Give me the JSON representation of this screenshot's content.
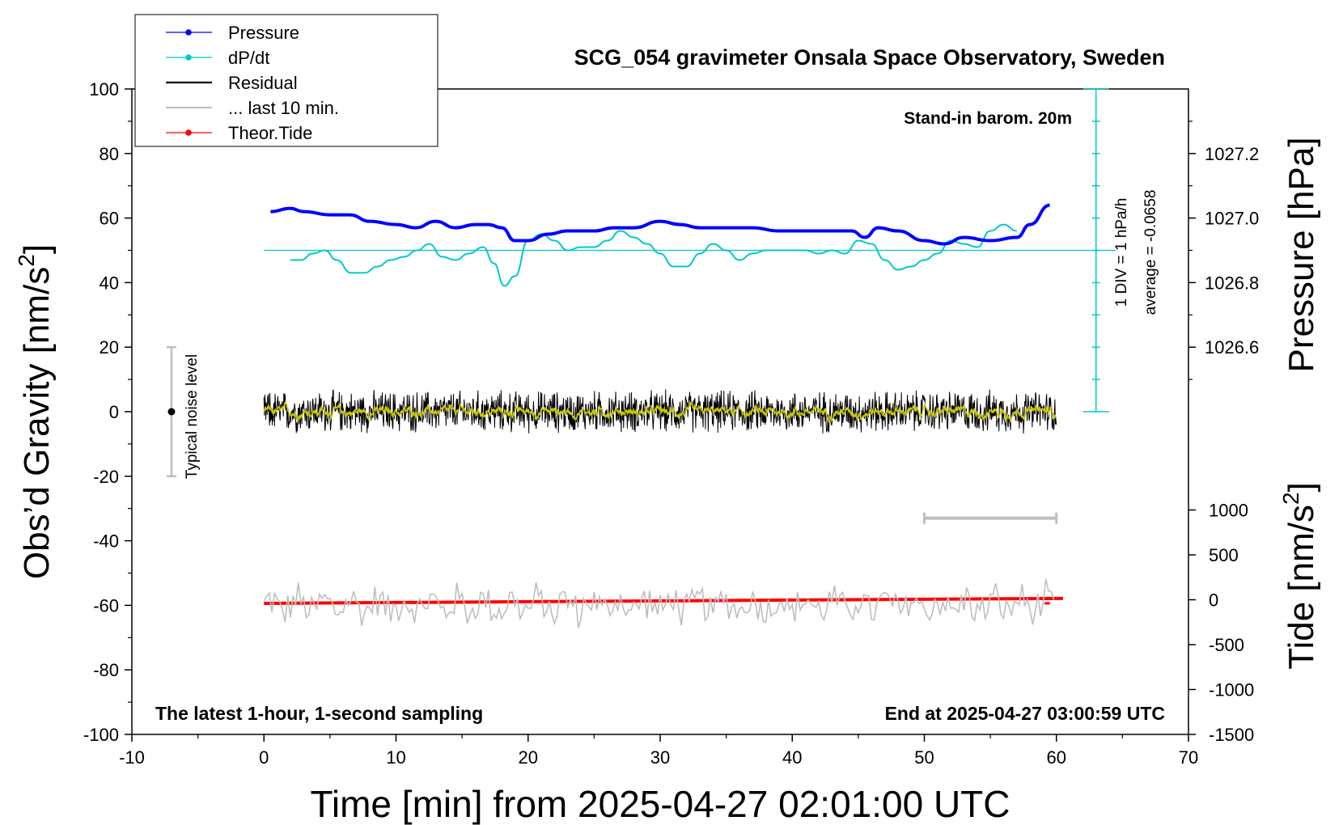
{
  "chart_data": {
    "type": "line",
    "title": "SCG_054 gravimeter Onsala Space Observatory, Sweden",
    "subtitle_top_right": "Stand-in barom. 20m",
    "footer_left": "The latest 1-hour, 1-second sampling",
    "footer_right": "End at 2025-04-27 03:00:59 UTC",
    "xlabel": "Time [min] from 2025-04-27 02:01:00 UTC",
    "ylabel_left_main": "Obs’d Gravity [nm/s",
    "ylabel_left_sup": "2",
    "ylabel_left_end": "]",
    "ylabel_right_pressure": "Pressure [hPa]",
    "ylabel_right_tide_main": "Tide [nm/s",
    "ylabel_right_tide_sup": "2",
    "ylabel_right_tide_end": "]",
    "xlim": [
      -10,
      70
    ],
    "ylim": [
      -100,
      100
    ],
    "pressure_lim": [
      1026.4,
      1027.4
    ],
    "tide_lim": [
      -1500,
      1500
    ],
    "x_ticks": [
      "-10",
      "0",
      "10",
      "20",
      "30",
      "40",
      "50",
      "60",
      "70"
    ],
    "x_tick_values": [
      -10,
      0,
      10,
      20,
      30,
      40,
      50,
      60,
      70
    ],
    "y_ticks": [
      "100",
      "80",
      "60",
      "40",
      "20",
      "0",
      "-20",
      "-40",
      "-60",
      "-80",
      "-100"
    ],
    "y_tick_values": [
      100,
      80,
      60,
      40,
      20,
      0,
      -20,
      -40,
      -60,
      -80,
      -100
    ],
    "pressure_ticks": [
      "1027.2",
      "1027.0",
      "1026.8",
      "1026.6"
    ],
    "pressure_tick_values": [
      1027.2,
      1027.0,
      1026.8,
      1026.6
    ],
    "tide_ticks": [
      "1000",
      "500",
      "0",
      "-500",
      "-1000",
      "-1500"
    ],
    "tide_tick_values": [
      1000,
      500,
      0,
      -500,
      -1000,
      -1500
    ],
    "legend_placement": "top-left",
    "legend": [
      {
        "label": "Pressure",
        "color": "#0000ff",
        "marker": true
      },
      {
        "label": "dP/dt",
        "color": "#00c8c8",
        "marker": true
      },
      {
        "label": "Residual",
        "color": "#000000",
        "marker": false
      },
      {
        "label": "... last 10 min.",
        "color": "#bebebe",
        "marker": false
      },
      {
        "label": "Theor.Tide",
        "color": "#ff0000",
        "marker": true
      }
    ],
    "dpdt_scale": {
      "label_div": "1 DIV = 1 hPa/h",
      "label_avg": "average = -0.0658"
    },
    "noise_bar": {
      "label": "Typical noise level",
      "x": -7,
      "y_range": [
        -20,
        20
      ]
    },
    "ten_min_bar": {
      "x_range": [
        50,
        60
      ],
      "y": -33
    },
    "series": [
      {
        "name": "Pressure",
        "color": "#0000ff",
        "axis": "pressure",
        "x": [
          0.5,
          2,
          3,
          5,
          6.5,
          8,
          10,
          11.5,
          13,
          14.5,
          16,
          17,
          18,
          19,
          20,
          21.5,
          23,
          25,
          26.5,
          28,
          30,
          31.5,
          33,
          35,
          37,
          39,
          41,
          43,
          44.5,
          45.5,
          46.5,
          48,
          50,
          51.5,
          53,
          55,
          57,
          58,
          59.5
        ],
        "values": [
          1027.02,
          1027.03,
          1027.02,
          1027.01,
          1027.01,
          1026.99,
          1026.98,
          1026.97,
          1026.99,
          1026.97,
          1026.98,
          1026.98,
          1026.97,
          1026.93,
          1026.93,
          1026.95,
          1026.96,
          1026.96,
          1026.97,
          1026.97,
          1026.99,
          1026.98,
          1026.97,
          1026.97,
          1026.97,
          1026.96,
          1026.96,
          1026.96,
          1026.96,
          1026.94,
          1026.97,
          1026.96,
          1026.93,
          1026.92,
          1026.94,
          1026.93,
          1026.94,
          1026.98,
          1027.04
        ]
      },
      {
        "name": "dP/dt",
        "color": "#00c8c8",
        "axis": "left",
        "x": [
          2,
          2.8,
          3.7,
          4.6,
          5.5,
          6.6,
          7.6,
          8.6,
          9.6,
          10.6,
          11.6,
          12.5,
          13.5,
          14.5,
          15.5,
          16.6,
          17.4,
          18.2,
          19,
          20,
          21,
          22,
          23,
          24,
          25,
          26,
          27,
          28,
          29,
          30,
          31,
          32,
          33,
          34,
          35,
          36,
          37,
          38,
          39,
          40,
          41,
          42,
          43,
          44,
          45,
          46,
          47,
          48,
          49,
          50,
          51,
          52,
          53,
          54,
          55,
          56,
          57
        ],
        "values": [
          47,
          47,
          49,
          50,
          47,
          43,
          43,
          45,
          47,
          48,
          50,
          52,
          48,
          47,
          49,
          51,
          46,
          39,
          42,
          53,
          55,
          53,
          50,
          51,
          51,
          53,
          56,
          54,
          52,
          49,
          45,
          45,
          49,
          52,
          50,
          47,
          49,
          50,
          50,
          50,
          50,
          49,
          50,
          49,
          53,
          52,
          47,
          44,
          45,
          47,
          49,
          53,
          52,
          51,
          56,
          58,
          56
        ]
      },
      {
        "name": "Residual",
        "color": "#000000",
        "axis": "left",
        "x_range": [
          0,
          60
        ],
        "amplitude": 5,
        "offset": 0
      },
      {
        "name": "... last 10 min.",
        "color": "#bebebe",
        "axis": "left",
        "x_range": [
          0,
          60
        ],
        "amplitude": 5,
        "offset": -60
      },
      {
        "name": "Theor.Tide",
        "color": "#ff0000",
        "axis": "tide",
        "x": [
          0,
          60.5
        ],
        "values": [
          -40,
          15
        ]
      }
    ]
  }
}
